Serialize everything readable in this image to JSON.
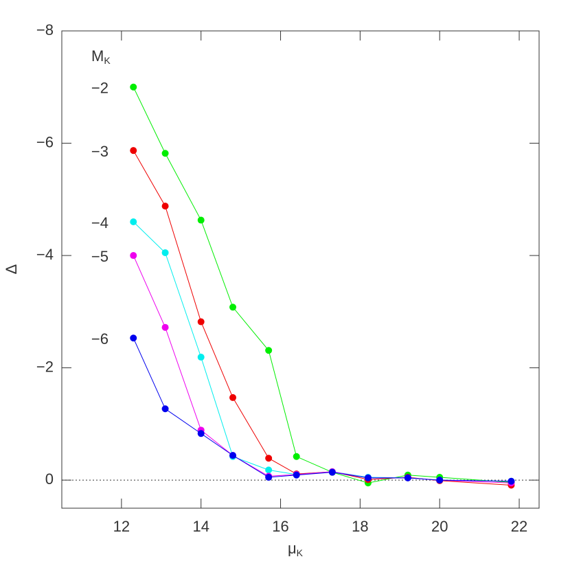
{
  "chart_data": {
    "type": "line",
    "xlabel": {
      "main": "μ",
      "sub": "K"
    },
    "ylabel": "Δ",
    "legend_title": {
      "main": "M",
      "sub": "K"
    },
    "x": [
      12.3,
      13.1,
      14.0,
      14.8,
      15.7,
      16.4,
      17.3,
      18.2,
      19.2,
      20.0,
      21.8
    ],
    "series": [
      {
        "name": "−2",
        "color": "#00ee00",
        "values": [
          -7.0,
          -5.82,
          -4.63,
          -3.08,
          -2.31,
          -0.42,
          -0.14,
          0.05,
          -0.09,
          -0.05,
          0.04
        ]
      },
      {
        "name": "−3",
        "color": "#ee0000",
        "values": [
          -5.87,
          -4.88,
          -2.82,
          -1.47,
          -0.39,
          -0.11,
          -0.15,
          -0.01,
          -0.05,
          0.01,
          0.09
        ]
      },
      {
        "name": "−4",
        "color": "#00eeee",
        "values": [
          -4.6,
          -4.05,
          -2.19,
          -0.42,
          -0.18,
          -0.1,
          -0.15,
          -0.05,
          -0.04,
          0,
          0.02
        ]
      },
      {
        "name": "−5",
        "color": "#ee00ee",
        "values": [
          -4.0,
          -2.72,
          -0.89,
          -0.44,
          -0.07,
          -0.1,
          -0.15,
          -0.04,
          -0.04,
          0,
          0.05
        ]
      },
      {
        "name": "−6",
        "color": "#0000ee",
        "values": [
          -2.53,
          -1.27,
          -0.83,
          -0.44,
          -0.05,
          -0.09,
          -0.14,
          -0.04,
          -0.04,
          0,
          0.02
        ]
      }
    ],
    "xlim": [
      10.5,
      22.5
    ],
    "xticks": [
      12,
      14,
      16,
      18,
      20,
      22
    ],
    "ylim": [
      0.5,
      -8
    ],
    "yticks": [
      {
        "value": -8,
        "label": "−8"
      },
      {
        "value": -6,
        "label": "−6"
      },
      {
        "value": -4,
        "label": "−4"
      },
      {
        "value": -2,
        "label": "−2"
      },
      0
    ],
    "hline": 0
  }
}
